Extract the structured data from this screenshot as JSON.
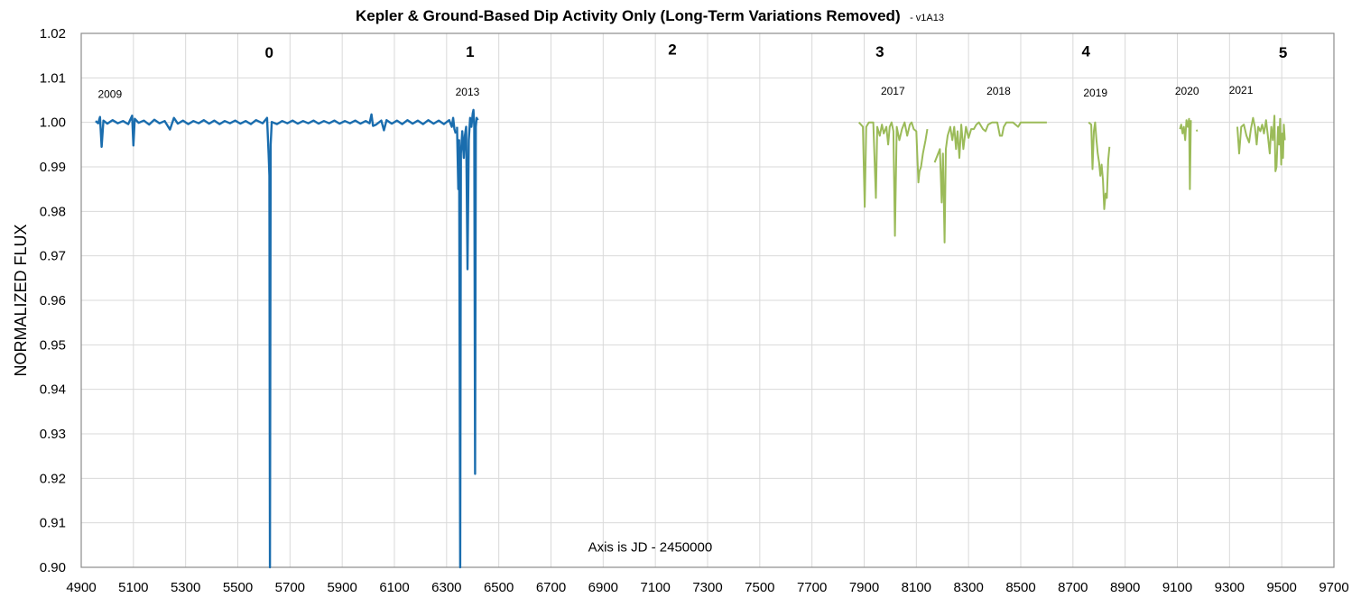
{
  "chart_data": {
    "type": "line",
    "title": "Kepler & Ground-Based Dip Activity Only (Long-Term Variations Removed)",
    "title_suffix": "- v1A13",
    "xlabel": "",
    "ylabel": "NORMALIZED FLUX",
    "xlim": [
      4900,
      9700
    ],
    "ylim": [
      0.9,
      1.02
    ],
    "grid": true,
    "x_ticks": [
      "4900",
      "5100",
      "5300",
      "5500",
      "5700",
      "5900",
      "6100",
      "6300",
      "6500",
      "6700",
      "6900",
      "7100",
      "7300",
      "7500",
      "7700",
      "7900",
      "8100",
      "8300",
      "8500",
      "8700",
      "8900",
      "9100",
      "9300",
      "9500",
      "9700"
    ],
    "y_ticks": [
      "1.02",
      "1.01",
      "1.00",
      "0.99",
      "0.98",
      "0.97",
      "0.96",
      "0.95",
      "0.94",
      "0.93",
      "0.92",
      "0.91",
      "0.90"
    ],
    "annotations": {
      "segments": [
        {
          "label": "0",
          "x": 5620,
          "y": 1.0145
        },
        {
          "label": "1",
          "x": 6390,
          "y": 1.0147
        },
        {
          "label": "2",
          "x": 7165,
          "y": 1.0152
        },
        {
          "label": "3",
          "x": 7960,
          "y": 1.0147
        },
        {
          "label": "4",
          "x": 8750,
          "y": 1.0148
        },
        {
          "label": "5",
          "x": 9505,
          "y": 1.0145
        }
      ],
      "years": [
        {
          "label": "2009",
          "x": 5010,
          "y": 1.0055
        },
        {
          "label": "2013",
          "x": 6380,
          "y": 1.006
        },
        {
          "label": "2017",
          "x": 8010,
          "y": 1.0062
        },
        {
          "label": "2018",
          "x": 8415,
          "y": 1.0062
        },
        {
          "label": "2019",
          "x": 8786,
          "y": 1.0058
        },
        {
          "label": "2020",
          "x": 9137,
          "y": 1.0062
        },
        {
          "label": "2021",
          "x": 9344,
          "y": 1.0064
        }
      ],
      "note": {
        "label": "Axis is JD - 2450000",
        "x": 7080,
        "y": 0.9035
      }
    },
    "series": [
      {
        "color": "#1a6dae",
        "segments": [
          [
            [
              4955,
              1.0003
            ],
            [
              4965,
              0.9998
            ],
            [
              4972,
              1.0012
            ],
            [
              4978,
              0.9945
            ],
            [
              4985,
              1.0004
            ],
            [
              5000,
              0.9997
            ],
            [
              5020,
              1.0005
            ],
            [
              5040,
              0.9998
            ],
            [
              5060,
              1.0003
            ],
            [
              5080,
              0.9996
            ],
            [
              5095,
              1.0015
            ],
            [
              5100,
              0.9948
            ],
            [
              5105,
              1.0008
            ],
            [
              5120,
              0.9999
            ],
            [
              5140,
              1.0004
            ],
            [
              5160,
              0.9995
            ],
            [
              5180,
              1.0006
            ],
            [
              5200,
              0.9998
            ],
            [
              5220,
              1.0003
            ],
            [
              5240,
              0.9984
            ],
            [
              5255,
              1.001
            ],
            [
              5270,
              0.9997
            ],
            [
              5290,
              1.0004
            ],
            [
              5310,
              0.9996
            ],
            [
              5330,
              1.0003
            ],
            [
              5350,
              0.9998
            ],
            [
              5370,
              1.0005
            ],
            [
              5390,
              0.9997
            ],
            [
              5410,
              1.0004
            ],
            [
              5430,
              0.9996
            ],
            [
              5450,
              1.0003
            ],
            [
              5470,
              0.9998
            ],
            [
              5490,
              1.0004
            ],
            [
              5510,
              0.9997
            ],
            [
              5530,
              1.0003
            ],
            [
              5550,
              0.9996
            ],
            [
              5570,
              1.0005
            ],
            [
              5595,
              0.9998
            ],
            [
              5612,
              1.001
            ],
            [
              5618,
              0.993
            ],
            [
              5621,
              0.988
            ],
            [
              5623,
              0.899
            ],
            [
              5626,
              0.995
            ],
            [
              5630,
              1.0001
            ],
            [
              5650,
              0.9996
            ],
            [
              5670,
              1.0003
            ],
            [
              5690,
              0.9998
            ],
            [
              5710,
              1.0004
            ],
            [
              5730,
              0.9997
            ],
            [
              5750,
              1.0003
            ],
            [
              5770,
              0.9998
            ],
            [
              5790,
              1.0004
            ],
            [
              5810,
              0.9997
            ],
            [
              5830,
              1.0003
            ],
            [
              5850,
              0.9998
            ],
            [
              5870,
              1.0004
            ],
            [
              5890,
              0.9997
            ],
            [
              5910,
              1.0003
            ],
            [
              5930,
              0.9998
            ],
            [
              5950,
              1.0004
            ],
            [
              5970,
              0.9997
            ],
            [
              5990,
              1.0003
            ],
            [
              6005,
              0.9998
            ],
            [
              6012,
              1.0018
            ],
            [
              6018,
              0.9992
            ],
            [
              6030,
              0.9995
            ],
            [
              6050,
              1.0004
            ],
            [
              6060,
              0.9982
            ],
            [
              6070,
              1.0005
            ],
            [
              6090,
              0.9997
            ],
            [
              6110,
              1.0004
            ],
            [
              6130,
              0.9996
            ],
            [
              6150,
              1.0005
            ],
            [
              6170,
              0.9997
            ],
            [
              6190,
              1.0004
            ],
            [
              6210,
              0.9996
            ],
            [
              6230,
              1.0005
            ],
            [
              6250,
              0.9997
            ],
            [
              6270,
              1.0004
            ],
            [
              6290,
              0.9996
            ],
            [
              6310,
              1.0005
            ],
            [
              6320,
              0.999
            ],
            [
              6325,
              1.001
            ],
            [
              6330,
              0.9985
            ],
            [
              6335,
              0.9975
            ]
          ],
          [
            [
              6340,
              0.999
            ],
            [
              6345,
              0.985
            ],
            [
              6348,
              0.996
            ],
            [
              6352,
              0.899
            ],
            [
              6355,
              0.993
            ],
            [
              6360,
              0.998
            ],
            [
              6366,
              0.992
            ],
            [
              6370,
              0.997
            ],
            [
              6375,
              0.999
            ],
            [
              6380,
              0.967
            ],
            [
              6385,
              0.996
            ],
            [
              6390,
              1.001
            ],
            [
              6395,
              0.999
            ],
            [
              6400,
              1.002
            ],
            [
              6403,
              1.0028
            ],
            [
              6406,
              0.999
            ],
            [
              6409,
              0.921
            ],
            [
              6412,
              0.999
            ],
            [
              6415,
              1.001
            ],
            [
              6420,
              1.0005
            ]
          ]
        ]
      },
      {
        "color": "#9bbb59",
        "segments": [
          [
            [
              7880,
              1.0
            ],
            [
              7895,
              0.999
            ],
            [
              7902,
              0.981
            ],
            [
              7908,
              0.999
            ],
            [
              7918,
              1.0
            ],
            [
              7935,
              1.0
            ],
            [
              7945,
              0.983
            ],
            [
              7950,
              0.999
            ],
            [
              7960,
              0.997
            ],
            [
              7968,
              0.9995
            ],
            [
              7975,
              0.9975
            ],
            [
              7985,
              0.999
            ],
            [
              7992,
              0.995
            ],
            [
              7998,
              0.999
            ],
            [
              8005,
              1.0
            ],
            [
              8012,
              0.998
            ],
            [
              8018,
              0.9745
            ],
            [
              8025,
              0.999
            ],
            [
              8035,
              0.996
            ],
            [
              8045,
              0.9985
            ],
            [
              8055,
              1.0
            ],
            [
              8065,
              0.997
            ],
            [
              8075,
              0.9995
            ],
            [
              8082,
              1.0
            ],
            [
              8090,
              0.9985
            ],
            [
              8100,
              0.998
            ],
            [
              8108,
              0.9865
            ],
            [
              8112,
              0.989
            ],
            [
              8118,
              0.99
            ],
            [
              8125,
              0.993
            ],
            [
              8135,
              0.996
            ],
            [
              8142,
              0.9985
            ]
          ],
          [
            [
              8170,
              0.991
            ],
            [
              8180,
              0.9925
            ],
            [
              8190,
              0.994
            ],
            [
              8197,
              0.982
            ],
            [
              8202,
              0.993
            ],
            [
              8208,
              0.973
            ],
            [
              8213,
              0.994
            ],
            [
              8220,
              0.997
            ],
            [
              8230,
              0.999
            ],
            [
              8238,
              0.996
            ],
            [
              8245,
              0.999
            ],
            [
              8252,
              0.994
            ],
            [
              8258,
              0.998
            ],
            [
              8265,
              0.992
            ],
            [
              8272,
              0.9995
            ],
            [
              8280,
              0.994
            ],
            [
              8290,
              0.999
            ],
            [
              8300,
              0.9965
            ],
            [
              8310,
              0.9985
            ],
            [
              8320,
              0.9985
            ],
            [
              8330,
              0.9995
            ],
            [
              8340,
              1.0
            ],
            [
              8355,
              0.9985
            ],
            [
              8365,
              0.998
            ],
            [
              8375,
              0.9995
            ],
            [
              8390,
              1.0
            ],
            [
              8410,
              1.0
            ],
            [
              8420,
              0.997
            ],
            [
              8428,
              0.997
            ],
            [
              8435,
              0.999
            ],
            [
              8445,
              1.0
            ],
            [
              8470,
              1.0
            ],
            [
              8490,
              0.999
            ],
            [
              8500,
              1.0
            ],
            [
              8600,
              1.0
            ]
          ],
          [
            [
              8760,
              1.0
            ],
            [
              8770,
              0.9995
            ],
            [
              8775,
              0.9895
            ],
            [
              8780,
              0.998
            ],
            [
              8785,
              1.0
            ],
            [
              8790,
              0.996
            ],
            [
              8795,
              0.993
            ],
            [
              8800,
              0.991
            ],
            [
              8805,
              0.988
            ],
            [
              8810,
              0.9905
            ],
            [
              8815,
              0.987
            ],
            [
              8820,
              0.9805
            ],
            [
              8825,
              0.984
            ],
            [
              8830,
              0.983
            ],
            [
              8835,
              0.9915
            ],
            [
              8840,
              0.9945
            ]
          ],
          [
            [
              9110,
              0.9985
            ],
            [
              9115,
              0.9995
            ],
            [
              9120,
              0.9975
            ],
            [
              9125,
              0.999
            ],
            [
              9130,
              0.996
            ],
            [
              9135,
              1.0005
            ],
            [
              9140,
              0.999
            ],
            [
              9145,
              1.0008
            ],
            [
              9148,
              0.985
            ],
            [
              9152,
              1.0005
            ]
          ],
          [
            [
              9172,
              0.9981
            ],
            [
              9178,
              0.9982
            ]
          ],
          [
            [
              9330,
              0.999
            ],
            [
              9337,
              0.993
            ],
            [
              9345,
              0.999
            ],
            [
              9355,
              0.9995
            ],
            [
              9365,
              0.997
            ],
            [
              9375,
              0.9955
            ],
            [
              9382,
              0.9985
            ],
            [
              9390,
              1.001
            ],
            [
              9397,
              0.999
            ],
            [
              9404,
              0.995
            ],
            [
              9410,
              0.999
            ],
            [
              9418,
              0.998
            ],
            [
              9425,
              0.9995
            ],
            [
              9432,
              0.9975
            ],
            [
              9440,
              1.0005
            ],
            [
              9447,
              0.997
            ],
            [
              9454,
              0.993
            ],
            [
              9460,
              0.999
            ],
            [
              9466,
              0.996
            ],
            [
              9472,
              1.0015
            ],
            [
              9476,
              0.989
            ],
            [
              9480,
              0.99
            ],
            [
              9486,
              0.999
            ],
            [
              9490,
              0.995
            ],
            [
              9494,
              1.0008
            ],
            [
              9498,
              0.9905
            ],
            [
              9502,
              0.9975
            ],
            [
              9505,
              0.992
            ],
            [
              9508,
              0.9995
            ],
            [
              9512,
              0.996
            ]
          ]
        ]
      }
    ]
  }
}
